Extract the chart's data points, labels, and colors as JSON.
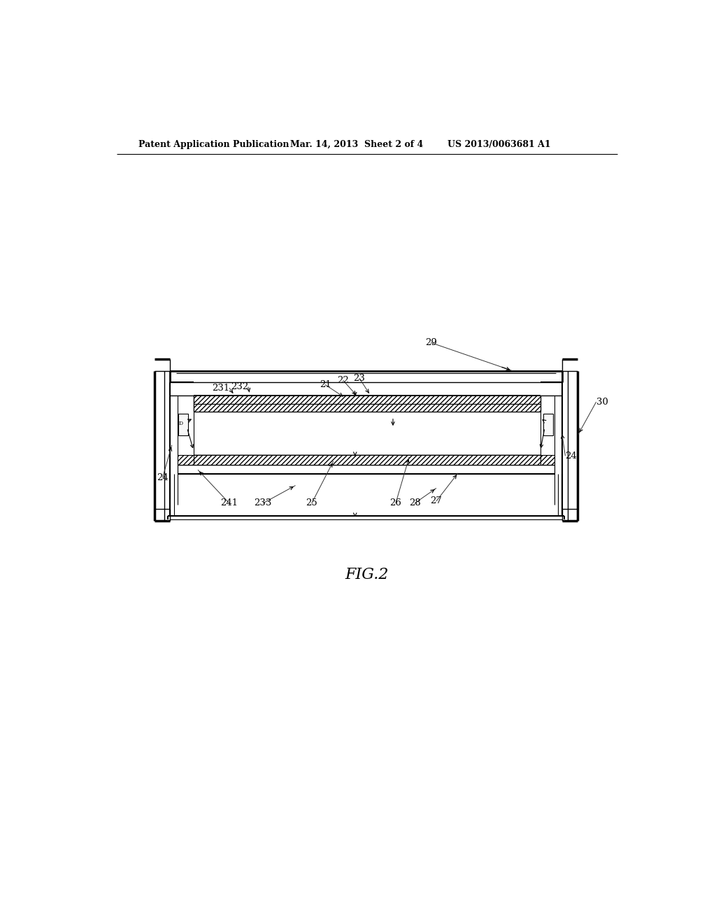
{
  "bg_color": "#ffffff",
  "line_color": "#000000",
  "header_left": "Patent Application Publication",
  "header_mid": "Mar. 14, 2013  Sheet 2 of 4",
  "header_right": "US 2013/0063681 A1",
  "fig_label": "FIG.2"
}
